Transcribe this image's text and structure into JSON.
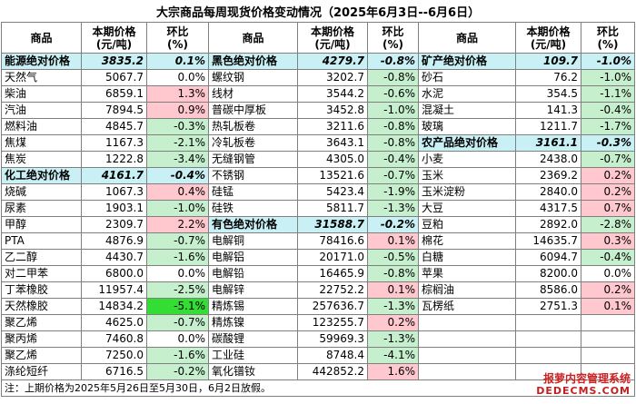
{
  "title": "大宗商品每周现货价格变动情况（2025年6月3日--6月6日）",
  "headers": {
    "name": "商品",
    "price_line1": "本期价格",
    "price_line2": "(元/吨)",
    "chg_line1": "环比",
    "chg_line2": "(%)"
  },
  "rows": [
    [
      [
        "能源绝对价格",
        "3835.2",
        "0.1%",
        "cat"
      ],
      [
        "黑色绝对价格",
        "4279.7",
        "-0.8%",
        "cat"
      ],
      [
        "矿产绝对价格",
        "109.7",
        "-1.0%",
        "cat"
      ]
    ],
    [
      [
        "天然气",
        "5067.7",
        "0.0%",
        ""
      ],
      [
        "螺纹钢",
        "3202.7",
        "-0.8%",
        ""
      ],
      [
        "砂石",
        "76.2",
        "-1.0%",
        ""
      ]
    ],
    [
      [
        "柴油",
        "6859.1",
        "1.3%",
        ""
      ],
      [
        "线材",
        "3544.2",
        "-0.6%",
        ""
      ],
      [
        "水泥",
        "354.5",
        "-1.1%",
        ""
      ]
    ],
    [
      [
        "汽油",
        "7894.5",
        "0.9%",
        ""
      ],
      [
        "普碳中厚板",
        "3452.8",
        "-1.0%",
        ""
      ],
      [
        "混凝土",
        "141.3",
        "-0.4%",
        ""
      ]
    ],
    [
      [
        "燃料油",
        "4845.7",
        "-0.3%",
        ""
      ],
      [
        "热轧板卷",
        "3211.6",
        "-0.8%",
        ""
      ],
      [
        "玻璃",
        "1211.7",
        "-1.7%",
        ""
      ]
    ],
    [
      [
        "焦煤",
        "1167.3",
        "-2.1%",
        ""
      ],
      [
        "冷轧板卷",
        "3643.1",
        "-0.8%",
        ""
      ],
      [
        "农产品绝对价格",
        "3161.1",
        "-0.3%",
        "cat"
      ]
    ],
    [
      [
        "焦炭",
        "1222.8",
        "-3.4%",
        ""
      ],
      [
        "无缝钢管",
        "4305.0",
        "-0.4%",
        ""
      ],
      [
        "小麦",
        "2438.0",
        "-0.7%",
        ""
      ]
    ],
    [
      [
        "化工绝对价格",
        "4161.7",
        "-0.4%",
        "cat"
      ],
      [
        "不锈钢",
        "13521.6",
        "-0.7%",
        ""
      ],
      [
        "玉米",
        "2369.2",
        "0.2%",
        ""
      ]
    ],
    [
      [
        "烧碱",
        "1067.3",
        "0.4%",
        ""
      ],
      [
        "硅锰",
        "5423.4",
        "-1.9%",
        ""
      ],
      [
        "玉米淀粉",
        "2840.0",
        "0.2%",
        ""
      ]
    ],
    [
      [
        "尿素",
        "1903.1",
        "-1.0%",
        ""
      ],
      [
        "硅铁",
        "5811.7",
        "-1.3%",
        ""
      ],
      [
        "大豆",
        "4317.5",
        "0.7%",
        ""
      ]
    ],
    [
      [
        "甲醇",
        "2309.7",
        "2.2%",
        ""
      ],
      [
        "有色绝对价格",
        "31588.7",
        "-0.2%",
        "cat"
      ],
      [
        "豆粕",
        "2892.0",
        "-2.8%",
        ""
      ]
    ],
    [
      [
        "PTA",
        "4876.9",
        "-0.7%",
        ""
      ],
      [
        "电解铜",
        "78416.6",
        "0.1%",
        ""
      ],
      [
        "棉花",
        "14635.7",
        "0.3%",
        ""
      ]
    ],
    [
      [
        "乙二醇",
        "4430.7",
        "-1.6%",
        ""
      ],
      [
        "电解铝",
        "20171.0",
        "-0.5%",
        ""
      ],
      [
        "白糖",
        "6094.7",
        "-0.4%",
        ""
      ]
    ],
    [
      [
        "对二甲苯",
        "6800.0",
        "0.0%",
        ""
      ],
      [
        "电解铅",
        "16465.9",
        "-0.8%",
        ""
      ],
      [
        "苹果",
        "8200.0",
        "0.0%",
        ""
      ]
    ],
    [
      [
        "丁苯橡胶",
        "11957.4",
        "-2.5%",
        ""
      ],
      [
        "电解锌",
        "22752.2",
        "0.1%",
        ""
      ],
      [
        "棕榈油",
        "8586.0",
        "0.2%",
        ""
      ]
    ],
    [
      [
        "天然橡胶",
        "14834.2",
        "-5.1%",
        ""
      ],
      [
        "精炼锡",
        "257636.7",
        "-1.3%",
        ""
      ],
      [
        "瓦楞纸",
        "2751.3",
        "0.1%",
        ""
      ]
    ],
    [
      [
        "聚乙烯",
        "4625.0",
        "-0.7%",
        ""
      ],
      [
        "精炼镍",
        "123255.7",
        "0.2%",
        ""
      ],
      [
        "",
        "",
        "",
        ""
      ]
    ],
    [
      [
        "聚丙烯",
        "7460.8",
        "0.0%",
        ""
      ],
      [
        "碳酸锂",
        "59969.3",
        "-1.3%",
        ""
      ],
      [
        "",
        "",
        "",
        ""
      ]
    ],
    [
      [
        "聚乙烯",
        "7250.0",
        "-1.6%",
        ""
      ],
      [
        "工业硅",
        "8748.4",
        "-4.1%",
        ""
      ],
      [
        "",
        "",
        "",
        ""
      ]
    ],
    [
      [
        "涤纶短纤",
        "6716.5",
        "-0.2%",
        ""
      ],
      [
        "氧化镨钕",
        "442852.2",
        "1.6%",
        ""
      ],
      [
        "",
        "",
        "",
        ""
      ]
    ]
  ],
  "note": "注：上期价格为2025年5月26日至5月30日，6月2日放假。",
  "watermark": {
    "line1": "报萝内容管理系统",
    "line2": "DEDECMS.COM"
  },
  "colors": {
    "category_bg": "#c9f0f5",
    "positive_bg": "#ffc7ce",
    "negative_bg": "#c6efce",
    "highlight_bg": "#33dd33",
    "border": "#7f7f7f"
  }
}
